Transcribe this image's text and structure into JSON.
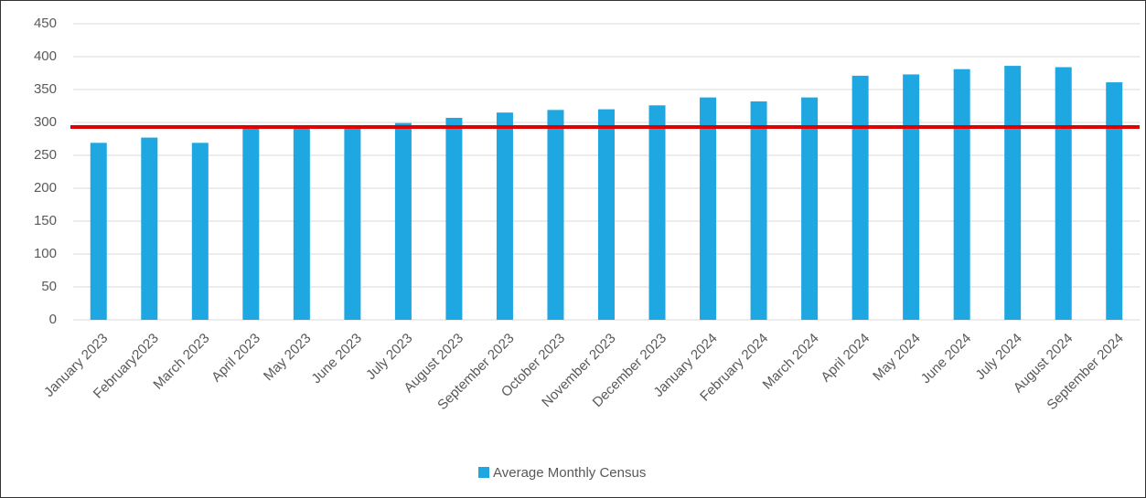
{
  "chart_data": {
    "type": "bar",
    "categories": [
      "January 2023",
      "February2023",
      "March 2023",
      "April 2023",
      "May 2023",
      "June 2023",
      "July 2023",
      "August 2023",
      "September 2023",
      "October 2023",
      "November 2023",
      "December 2023",
      "January 2024",
      "February 2024",
      "March 2024",
      "April 2024",
      "May 2024",
      "June 2024",
      "July 2024",
      "August 2024",
      "September 2024"
    ],
    "series": [
      {
        "name": "Average Monthly Census",
        "color": "#1ea7e1",
        "values": [
          269,
          277,
          269,
          295,
          295,
          294,
          299,
          307,
          315,
          319,
          320,
          326,
          338,
          332,
          338,
          371,
          373,
          381,
          386,
          384,
          361
        ]
      }
    ],
    "reference_line": {
      "value": 293,
      "color": "#e00000"
    },
    "ylim": [
      0,
      450
    ],
    "yticks": [
      0,
      50,
      100,
      150,
      200,
      250,
      300,
      350,
      400,
      450
    ],
    "grid": true,
    "legend": "bottom"
  }
}
